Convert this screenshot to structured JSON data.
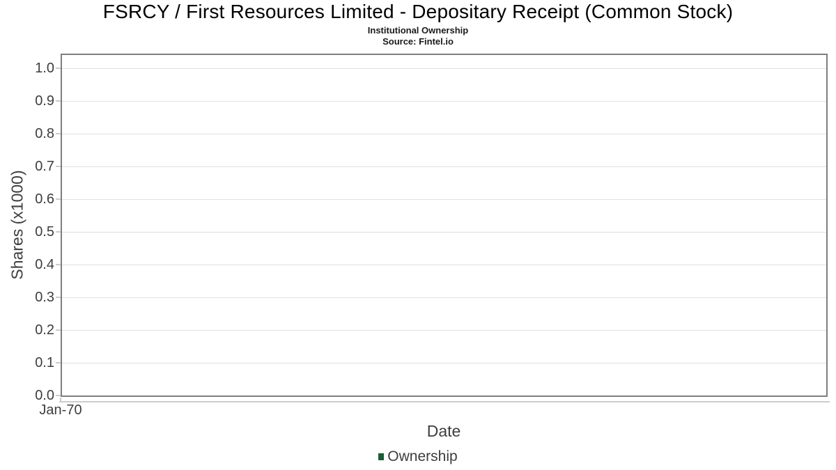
{
  "header": {
    "title": "FSRCY / First Resources Limited - Depositary Receipt (Common Stock)",
    "subtitle": "Institutional Ownership",
    "source": "Source: Fintel.io"
  },
  "chart_data": {
    "type": "line",
    "title": "FSRCY / First Resources Limited - Depositary Receipt (Common Stock)",
    "subtitle": "Institutional Ownership",
    "source": "Source: Fintel.io",
    "xlabel": "Date",
    "ylabel": "Shares (x1000)",
    "x_ticks": [
      "Jan-70"
    ],
    "y_ticks": [
      0.0,
      0.1,
      0.2,
      0.3,
      0.4,
      0.5,
      0.6,
      0.7,
      0.8,
      0.9,
      1.0
    ],
    "ylim": [
      0,
      1.05
    ],
    "grid": true,
    "legend_position": "bottom",
    "series": [
      {
        "name": "Ownership",
        "color": "#1d5c35",
        "x": [],
        "values": []
      }
    ],
    "colors": {
      "plot_border": "#7e7e7e",
      "gridline": "#e0e0e0",
      "axis_line": "#cccccc",
      "text": "#3d3d3d",
      "background": "#ffffff"
    }
  }
}
